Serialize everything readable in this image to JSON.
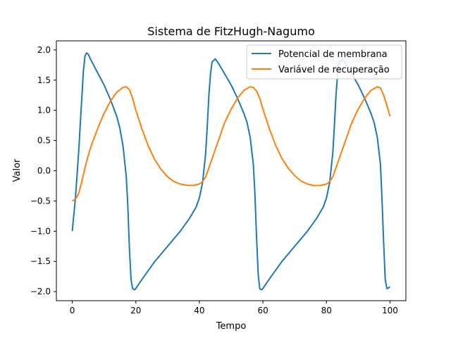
{
  "chart_data": {
    "type": "line",
    "title": "Sistema de FitzHugh-Nagumo",
    "xlabel": "Tempo",
    "ylabel": "Valor",
    "xlim": [
      -5,
      105
    ],
    "ylim": [
      -2.15,
      2.15
    ],
    "x_ticks": [
      0,
      20,
      40,
      60,
      80,
      100
    ],
    "x_tick_labels": [
      "0",
      "20",
      "40",
      "60",
      "80",
      "100"
    ],
    "y_ticks": [
      -2.0,
      -1.5,
      -1.0,
      -0.5,
      0.0,
      0.5,
      1.0,
      1.5,
      2.0
    ],
    "y_tick_labels": [
      "−2.0",
      "−1.5",
      "−1.0",
      "−0.5",
      "0.0",
      "0.5",
      "1.0",
      "1.5",
      "2.0"
    ],
    "grid": false,
    "legend_position": "top-right",
    "series": [
      {
        "name": "Potencial de membrana",
        "color": "#1f77b4",
        "x": [
          0,
          1,
          2,
          3,
          3.5,
          4,
          4.5,
          5,
          6,
          8,
          10,
          12,
          14,
          15,
          16,
          17,
          17.5,
          18,
          18.5,
          19,
          19.5,
          20,
          21,
          23,
          26,
          30,
          34,
          37,
          39,
          40,
          41,
          42,
          42.5,
          43,
          43.5,
          44,
          45,
          46,
          48,
          50,
          52,
          54,
          55,
          56,
          57,
          57.5,
          58,
          58.5,
          59,
          59.5,
          60,
          61,
          63,
          66,
          70,
          74,
          77,
          79,
          80,
          81,
          82,
          82.5,
          83,
          83.5,
          84,
          85,
          86,
          88,
          90,
          92,
          94,
          95,
          96,
          97,
          97.5,
          98,
          98.5,
          99,
          99.5,
          100
        ],
        "y": [
          -1.0,
          -0.45,
          0.3,
          1.2,
          1.65,
          1.9,
          1.95,
          1.93,
          1.82,
          1.62,
          1.42,
          1.18,
          0.9,
          0.7,
          0.4,
          -0.1,
          -0.6,
          -1.3,
          -1.8,
          -1.95,
          -1.97,
          -1.95,
          -1.87,
          -1.72,
          -1.5,
          -1.25,
          -1.0,
          -0.78,
          -0.6,
          -0.45,
          -0.2,
          0.3,
          0.75,
          1.25,
          1.6,
          1.8,
          1.85,
          1.78,
          1.6,
          1.42,
          1.2,
          0.95,
          0.8,
          0.55,
          0.1,
          -0.4,
          -1.1,
          -1.7,
          -1.95,
          -1.97,
          -1.95,
          -1.87,
          -1.72,
          -1.5,
          -1.25,
          -1.0,
          -0.78,
          -0.6,
          -0.45,
          -0.2,
          0.3,
          0.75,
          1.25,
          1.6,
          1.8,
          1.85,
          1.78,
          1.6,
          1.42,
          1.2,
          0.95,
          0.8,
          0.55,
          0.1,
          -0.5,
          -1.2,
          -1.8,
          -1.95,
          -1.94,
          -1.92
        ]
      },
      {
        "name": "Variável de recuperação",
        "color": "#ff7f0e",
        "x": [
          0,
          1,
          2,
          3,
          4,
          5,
          6,
          8,
          10,
          12,
          14,
          16,
          17,
          18,
          19,
          20,
          22,
          24,
          26,
          28,
          30,
          32,
          34,
          36,
          38,
          40,
          41,
          42,
          43,
          44,
          46,
          48,
          50,
          52,
          54,
          56,
          57,
          58,
          59,
          60,
          62,
          64,
          66,
          68,
          70,
          72,
          74,
          76,
          78,
          80,
          81,
          82,
          83,
          84,
          86,
          88,
          90,
          92,
          94,
          96,
          97,
          98,
          99,
          100
        ],
        "y": [
          -0.5,
          -0.47,
          -0.38,
          -0.18,
          0.05,
          0.25,
          0.42,
          0.7,
          0.95,
          1.15,
          1.3,
          1.38,
          1.39,
          1.34,
          1.2,
          1.0,
          0.68,
          0.4,
          0.18,
          0.02,
          -0.1,
          -0.18,
          -0.22,
          -0.24,
          -0.245,
          -0.22,
          -0.18,
          -0.1,
          0.05,
          0.2,
          0.5,
          0.8,
          1.02,
          1.2,
          1.33,
          1.39,
          1.38,
          1.32,
          1.2,
          1.02,
          0.7,
          0.42,
          0.2,
          0.04,
          -0.08,
          -0.17,
          -0.22,
          -0.245,
          -0.245,
          -0.22,
          -0.18,
          -0.1,
          0.05,
          0.2,
          0.5,
          0.8,
          1.02,
          1.2,
          1.33,
          1.39,
          1.37,
          1.25,
          1.08,
          0.9
        ]
      }
    ]
  }
}
